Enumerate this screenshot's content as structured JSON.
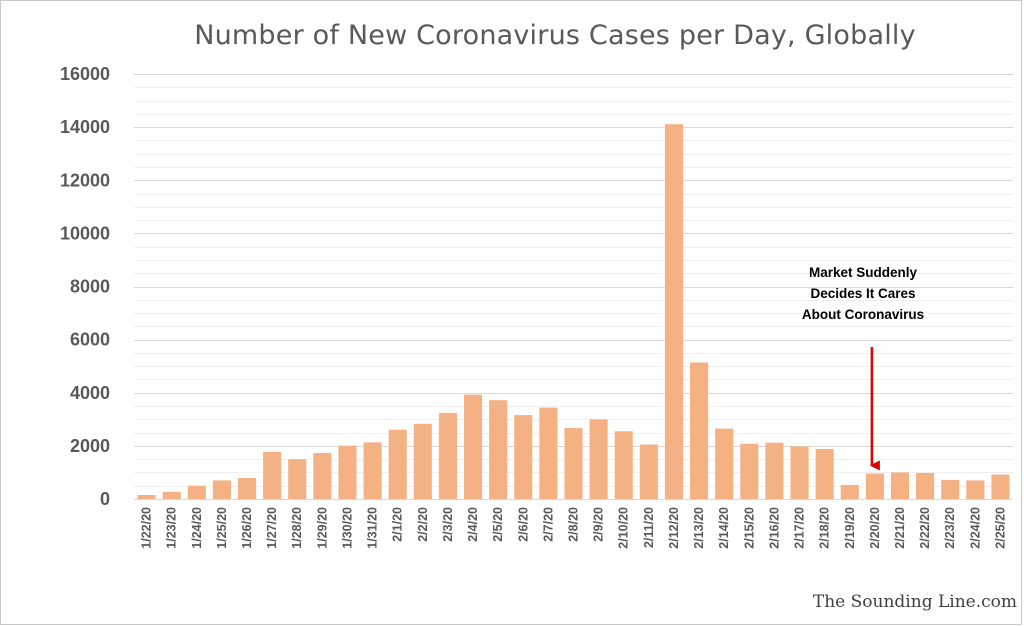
{
  "chart_data": {
    "type": "bar",
    "title": "Number of New Coronavirus Cases per Day, Globally",
    "xlabel": "",
    "ylabel": "",
    "ylim": [
      0,
      16000
    ],
    "yticks": [
      0,
      2000,
      4000,
      6000,
      8000,
      10000,
      12000,
      14000,
      16000
    ],
    "grid": true,
    "bar_color": "#f4b183",
    "categories": [
      "1/22/20",
      "1/23/20",
      "1/24/20",
      "1/25/20",
      "1/26/20",
      "1/27/20",
      "1/28/20",
      "1/29/20",
      "1/30/20",
      "1/31/20",
      "2/1/20",
      "2/2/20",
      "2/3/20",
      "2/4/20",
      "2/5/20",
      "2/6/20",
      "2/7/20",
      "2/8/20",
      "2/9/20",
      "2/10/20",
      "2/11/20",
      "2/12/20",
      "2/13/20",
      "2/14/20",
      "2/15/20",
      "2/16/20",
      "2/17/20",
      "2/18/20",
      "2/19/20",
      "2/20/20",
      "2/21/20",
      "2/22/20",
      "2/23/20",
      "2/24/20",
      "2/25/20"
    ],
    "values": [
      150,
      270,
      500,
      700,
      790,
      1770,
      1500,
      1730,
      2010,
      2130,
      2610,
      2830,
      3240,
      3930,
      3720,
      3160,
      3440,
      2670,
      3000,
      2550,
      2050,
      14110,
      5140,
      2650,
      2080,
      2120,
      1980,
      1880,
      530,
      960,
      1000,
      980,
      720,
      700,
      920
    ],
    "annotations": [
      {
        "text_lines": [
          "Market Suddenly",
          "Decides It Cares",
          "About Coronavirus"
        ],
        "arrow_color": "#e00000",
        "points_to": "2/20/20"
      }
    ]
  },
  "footer": {
    "credit": "The Sounding Line.com"
  }
}
